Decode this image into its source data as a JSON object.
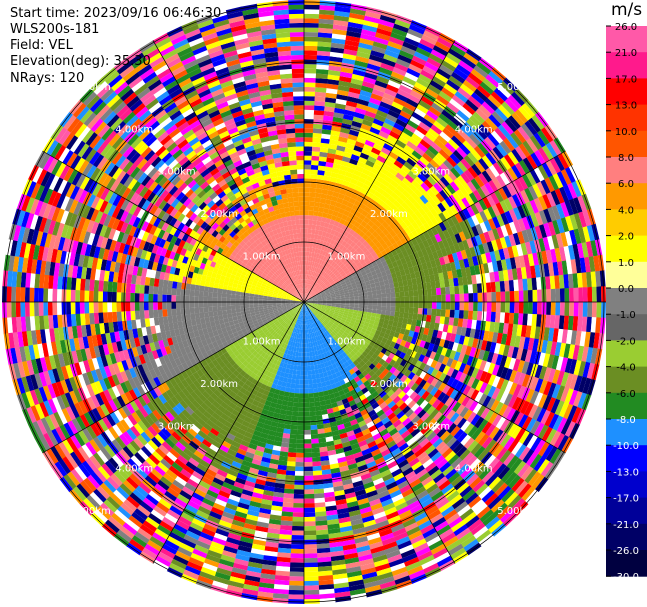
{
  "header": {
    "start_time": "Start time: 2023/09/16 06:46:30",
    "instrument": "WLS200s-181",
    "field": "Field: VEL",
    "elevation": "Elevation(deg): 35.30",
    "nrays": "NRays: 120"
  },
  "radar": {
    "range_labels_km": [
      "1.00km",
      "2.00km",
      "3.00km",
      "4.00km",
      "5.00km"
    ]
  },
  "colorbar": {
    "unit": "m/s",
    "ticks": [
      "26.0",
      "21.0",
      "17.0",
      "13.0",
      "10.0",
      "8.0",
      "6.0",
      "4.0",
      "2.0",
      "1.0",
      "0.0",
      "-1.0",
      "-2.0",
      "-4.0",
      "-6.0",
      "-8.0",
      "-10.0",
      "-13.0",
      "-17.0",
      "-21.0",
      "-26.0",
      "-30.0"
    ],
    "bins": [
      {
        "color": "#ff59a8"
      },
      {
        "color": "#ff1a8c"
      },
      {
        "color": "#ff0000"
      },
      {
        "color": "#ff3300"
      },
      {
        "color": "#ff5500"
      },
      {
        "color": "#ff7f7f"
      },
      {
        "color": "#ff9900"
      },
      {
        "color": "#ffcc00"
      },
      {
        "color": "#ffff00"
      },
      {
        "color": "#ffff99"
      },
      {
        "color": "#808080"
      },
      {
        "color": "#666666"
      },
      {
        "color": "#9acd32"
      },
      {
        "color": "#6b8e23"
      },
      {
        "color": "#228b22"
      },
      {
        "color": "#1e90ff"
      },
      {
        "color": "#0000ff"
      },
      {
        "color": "#0000cd"
      },
      {
        "color": "#000099"
      },
      {
        "color": "#000066"
      },
      {
        "color": "#000040"
      }
    ]
  }
}
